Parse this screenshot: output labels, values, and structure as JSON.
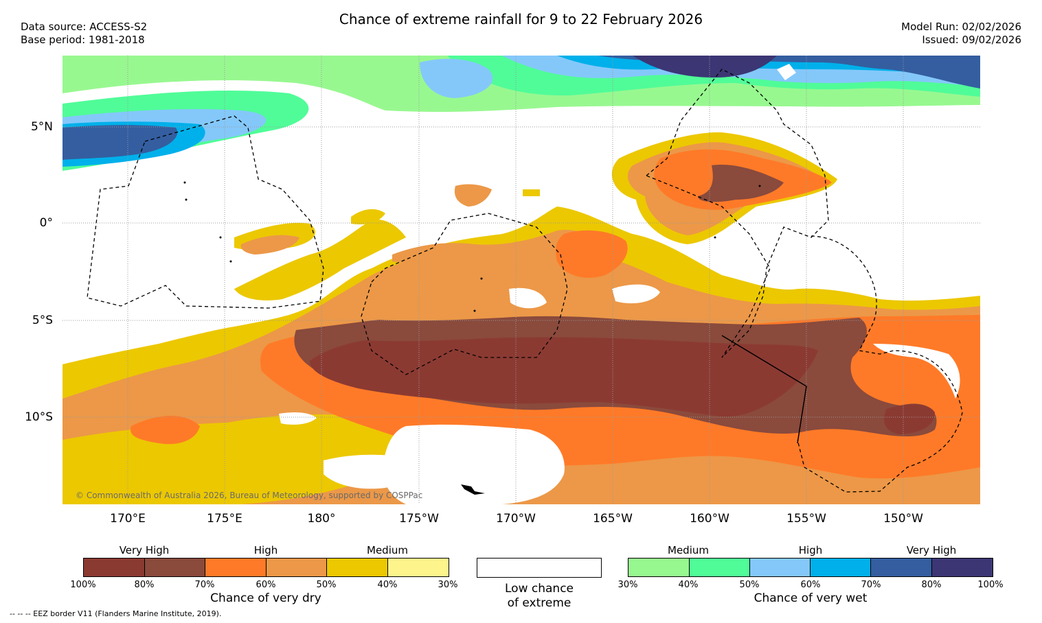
{
  "header": {
    "title": "Chance of extreme rainfall for 9 to 22 February 2026",
    "data_source": "Data source: ACCESS-S2",
    "base_period": "Base period: 1981-2018",
    "model_run": "Model Run: 02/02/2026",
    "issued": "Issued: 09/02/2026"
  },
  "map": {
    "lat_labels": [
      "5°N",
      "0°",
      "5°S",
      "10°S"
    ],
    "lon_labels": [
      "170°E",
      "175°E",
      "180°",
      "175°W",
      "170°W",
      "165°W",
      "160°W",
      "155°W",
      "150°W"
    ],
    "copyright": "© Commonwealth of Australia 2026, Bureau of Meteorology, supported by COSPPac",
    "gridlines": true,
    "lat_range": [
      "14°S",
      "8°N"
    ],
    "lon_range": [
      "167°E",
      "147°W"
    ]
  },
  "legend": {
    "dry": {
      "categories": [
        "Very High",
        "High",
        "Medium"
      ],
      "ticks": [
        "100%",
        "80%",
        "70%",
        "60%",
        "50%",
        "40%",
        "30%"
      ],
      "colors": [
        "#8b3a32",
        "#8a4a3c",
        "#ff7a28",
        "#ec9848",
        "#ecc800",
        "#fdf48c"
      ],
      "caption": "Chance of very dry"
    },
    "neutral": {
      "caption_line1": "Low chance",
      "caption_line2": "of extreme",
      "color": "#ffffff"
    },
    "wet": {
      "categories": [
        "Medium",
        "High",
        "Very High"
      ],
      "ticks": [
        "30%",
        "40%",
        "50%",
        "60%",
        "70%",
        "80%",
        "100%"
      ],
      "colors": [
        "#98f890",
        "#50fc98",
        "#84c8fa",
        "#00b0ea",
        "#345ea0",
        "#3c3674"
      ],
      "caption": "Chance of very wet"
    }
  },
  "footer": {
    "eez_note": "--  --  -- EEZ border V11 (Flanders Marine Institute, 2019)."
  }
}
